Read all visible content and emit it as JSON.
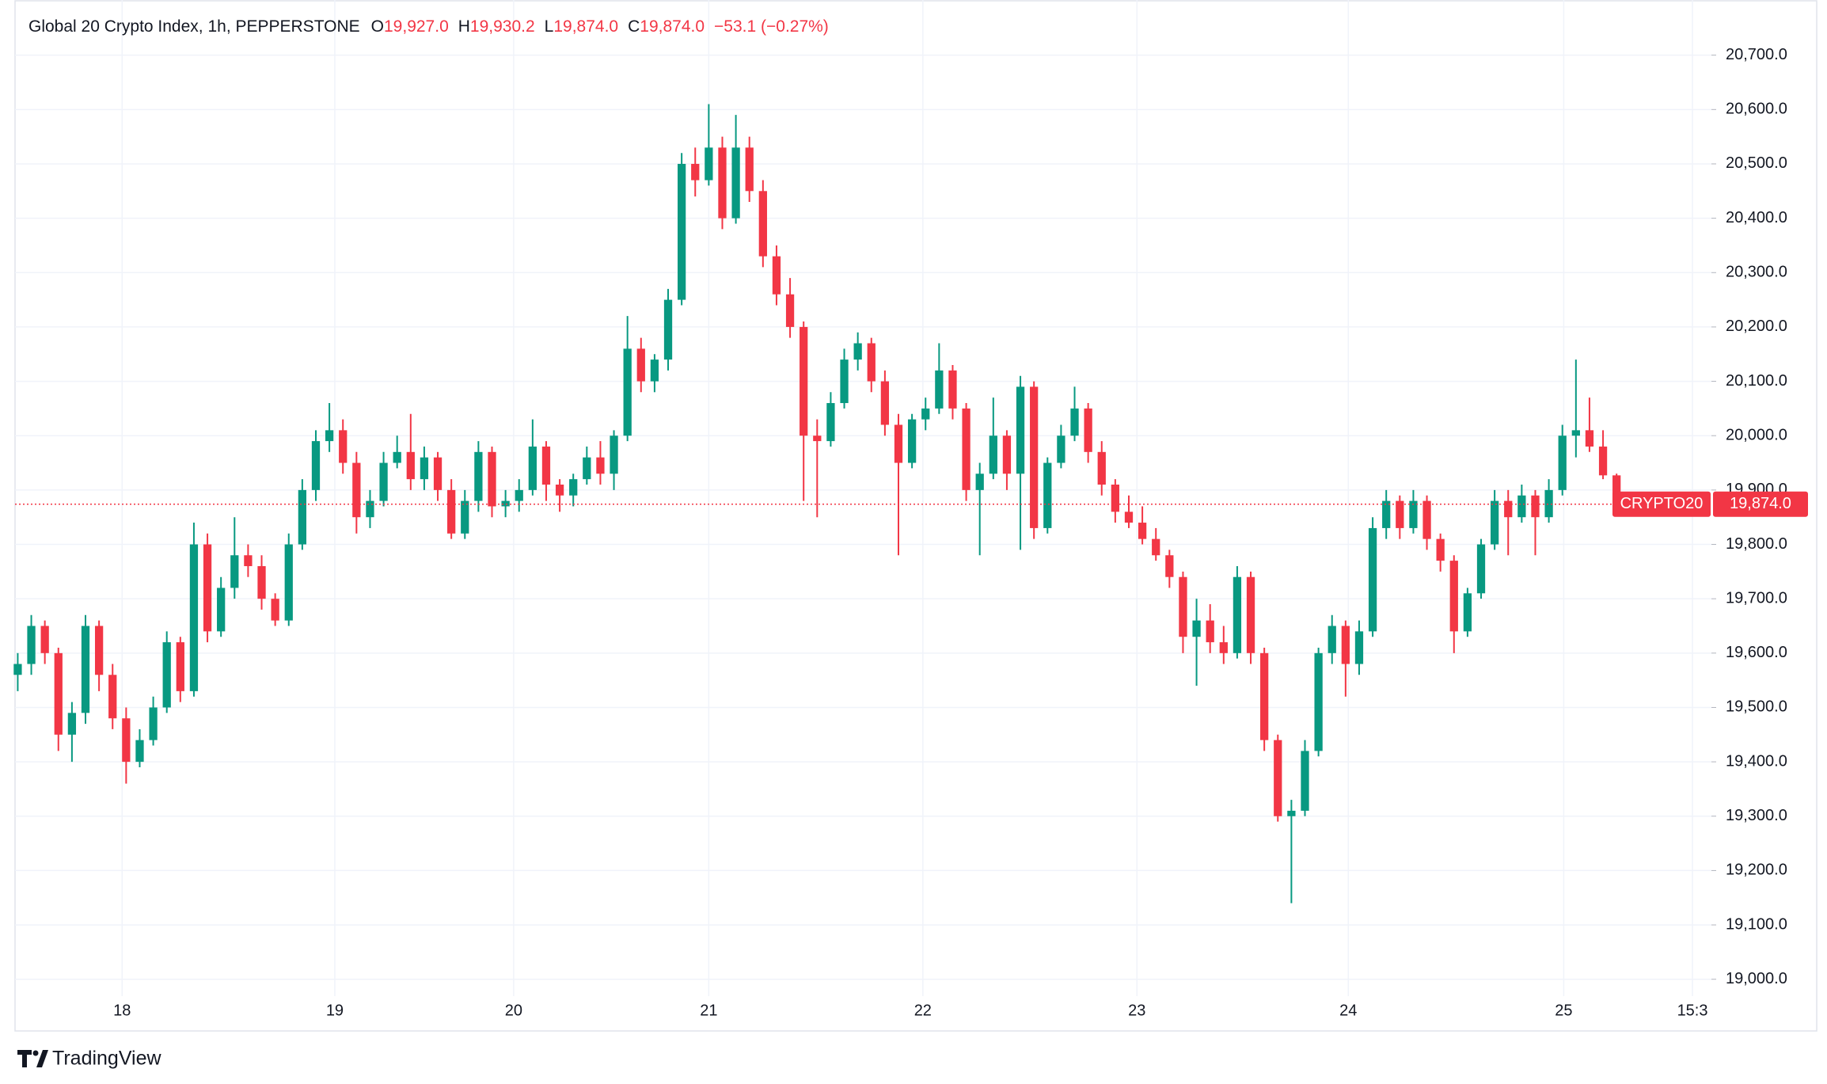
{
  "chart_data": {
    "type": "candlestick",
    "title": "Global 20 Crypto Index, 1h, PEPPERSTONE",
    "ohlc_legend": [
      {
        "key": "O",
        "value": "19,927.0"
      },
      {
        "key": "H",
        "value": "19,930.2"
      },
      {
        "key": "L",
        "value": "19,874.0"
      },
      {
        "key": "C",
        "value": "19,874.0"
      }
    ],
    "change": "−53.1 (−0.27%)",
    "up_color": "#089981",
    "down_color": "#f23645",
    "grid": true,
    "x": [
      1,
      2,
      3,
      4,
      5,
      6,
      7,
      8,
      9,
      10,
      11,
      12,
      13,
      14,
      15,
      16,
      17,
      18,
      19,
      20,
      21,
      22,
      23,
      24,
      25,
      26,
      27,
      28,
      29,
      30,
      31,
      32,
      33,
      34,
      35,
      36,
      37,
      38,
      39,
      40,
      41,
      42,
      43,
      44,
      45,
      46,
      47,
      48,
      49,
      50,
      51,
      52,
      53,
      54,
      55,
      56,
      57,
      58,
      59,
      60,
      61,
      62,
      63,
      64,
      65,
      66,
      67,
      68,
      69,
      70,
      71,
      72,
      73,
      74,
      75,
      76,
      77,
      78,
      79,
      80,
      81,
      82,
      83,
      84,
      85,
      86,
      87,
      88,
      89,
      90,
      91,
      92,
      93,
      94,
      95,
      96,
      97,
      98,
      99,
      100,
      101,
      102,
      103,
      104,
      105,
      106,
      107,
      108,
      109,
      110,
      111,
      112,
      113,
      114,
      115,
      116,
      117,
      118,
      119
    ],
    "open": [
      19560,
      19580,
      19650,
      19600,
      19450,
      19490,
      19650,
      19560,
      19480,
      19400,
      19440,
      19500,
      19620,
      19530,
      19800,
      19640,
      19720,
      19780,
      19760,
      19700,
      19660,
      19800,
      19900,
      19990,
      20010,
      19950,
      19850,
      19880,
      19950,
      19970,
      19920,
      19960,
      19900,
      19820,
      19880,
      19970,
      19870,
      19880,
      19900,
      19980,
      19910,
      19890,
      19920,
      19960,
      19930,
      20000,
      20160,
      20100,
      20140,
      20250,
      20500,
      20470,
      20530,
      20400,
      20530,
      20450,
      20330,
      20260,
      20200,
      20000,
      19990,
      20060,
      20140,
      20170,
      20100,
      20020,
      19950,
      20030,
      20050,
      20120,
      20050,
      19900,
      19930,
      20000,
      19930,
      20090,
      19830,
      19950,
      20000,
      20050,
      19970,
      19910,
      19860,
      19840,
      19810,
      19780,
      19740,
      19630,
      19660,
      19620,
      19600,
      19740,
      19600,
      19440,
      19300,
      19310,
      19420,
      19600,
      19650,
      19580,
      19640,
      19830,
      19880,
      19830,
      19880,
      19810,
      19770,
      19640,
      19710,
      19800,
      19880,
      19850,
      19890,
      19850,
      19900,
      20000,
      20010,
      19980,
      19927
    ],
    "high": [
      19600,
      19670,
      19660,
      19610,
      19510,
      19670,
      19660,
      19580,
      19500,
      19460,
      19520,
      19640,
      19630,
      19840,
      19820,
      19740,
      19850,
      19800,
      19780,
      19710,
      19820,
      19920,
      20010,
      20060,
      20030,
      19970,
      19900,
      19970,
      20000,
      20040,
      19980,
      19970,
      19920,
      19900,
      19990,
      19980,
      19900,
      19920,
      20030,
      19990,
      19920,
      19930,
      19980,
      19990,
      20010,
      20220,
      20180,
      20150,
      20270,
      20520,
      20530,
      20610,
      20550,
      20590,
      20550,
      20470,
      20350,
      20290,
      20210,
      20030,
      20080,
      20160,
      20190,
      20180,
      20120,
      20040,
      20040,
      20070,
      20170,
      20130,
      20060,
      19950,
      20070,
      20010,
      20110,
      20100,
      19960,
      20020,
      20090,
      20060,
      19990,
      19920,
      19890,
      19870,
      19830,
      19790,
      19750,
      19700,
      19690,
      19650,
      19760,
      19750,
      19610,
      19450,
      19330,
      19440,
      19610,
      19670,
      19660,
      19660,
      19850,
      19900,
      19890,
      19900,
      19890,
      19820,
      19780,
      19720,
      19810,
      19900,
      19900,
      19910,
      19900,
      19920,
      20020,
      20140,
      20070,
      20010,
      19930.2
    ],
    "low": [
      19530,
      19560,
      19580,
      19420,
      19400,
      19470,
      19530,
      19460,
      19360,
      19390,
      19430,
      19490,
      19510,
      19520,
      19620,
      19630,
      19700,
      19740,
      19680,
      19650,
      19650,
      19790,
      19880,
      19970,
      19930,
      19820,
      19830,
      19870,
      19940,
      19900,
      19900,
      19880,
      19810,
      19810,
      19860,
      19850,
      19850,
      19860,
      19890,
      19880,
      19860,
      19870,
      19910,
      19910,
      19900,
      19990,
      20080,
      20080,
      20120,
      20240,
      20440,
      20460,
      20380,
      20390,
      20430,
      20310,
      20240,
      20180,
      19880,
      19850,
      19980,
      20050,
      20120,
      20080,
      20000,
      19780,
      19940,
      20010,
      20040,
      20030,
      19880,
      19780,
      19920,
      19900,
      19790,
      19810,
      19820,
      19940,
      19990,
      19950,
      19890,
      19840,
      19830,
      19800,
      19770,
      19720,
      19600,
      19540,
      19600,
      19580,
      19590,
      19580,
      19420,
      19290,
      19140,
      19300,
      19410,
      19580,
      19520,
      19560,
      19630,
      19810,
      19810,
      19820,
      19790,
      19750,
      19600,
      19630,
      19700,
      19790,
      19780,
      19840,
      19780,
      19840,
      19890,
      19960,
      19970,
      19920,
      19874
    ],
    "close": [
      19580,
      19650,
      19600,
      19450,
      19490,
      19650,
      19560,
      19480,
      19400,
      19440,
      19500,
      19620,
      19530,
      19800,
      19640,
      19720,
      19780,
      19760,
      19700,
      19660,
      19800,
      19900,
      19990,
      20010,
      19950,
      19850,
      19880,
      19950,
      19970,
      19920,
      19960,
      19900,
      19820,
      19880,
      19970,
      19870,
      19880,
      19900,
      19980,
      19910,
      19890,
      19920,
      19960,
      19930,
      20000,
      20160,
      20100,
      20140,
      20250,
      20500,
      20470,
      20530,
      20400,
      20530,
      20450,
      20330,
      20260,
      20200,
      20000,
      19990,
      20060,
      20140,
      20170,
      20100,
      20020,
      19950,
      20030,
      20050,
      20120,
      20050,
      19900,
      19930,
      20000,
      19930,
      20090,
      19830,
      19950,
      20000,
      20050,
      19970,
      19910,
      19860,
      19840,
      19810,
      19780,
      19740,
      19630,
      19660,
      19620,
      19600,
      19740,
      19600,
      19440,
      19300,
      19310,
      19420,
      19600,
      19650,
      19580,
      19640,
      19830,
      19880,
      19830,
      19880,
      19810,
      19770,
      19640,
      19710,
      19800,
      19880,
      19850,
      19890,
      19850,
      19900,
      20000,
      20010,
      19980,
      19927,
      19874
    ],
    "xlim": [
      0.8,
      126
    ],
    "xticks": [
      {
        "value": 8.7,
        "label": "18"
      },
      {
        "value": 24.4,
        "label": "19"
      },
      {
        "value": 37.6,
        "label": "20"
      },
      {
        "value": 52.0,
        "label": "21"
      },
      {
        "value": 67.8,
        "label": "22"
      },
      {
        "value": 83.6,
        "label": "23"
      },
      {
        "value": 99.2,
        "label": "24"
      },
      {
        "value": 115.1,
        "label": "25"
      },
      {
        "value": 124.6,
        "label": "15:3"
      }
    ],
    "ylim": [
      18969,
      20784
    ],
    "yticks": [
      {
        "value": 19000,
        "label": "19,000.0"
      },
      {
        "value": 19100,
        "label": "19,100.0"
      },
      {
        "value": 19200,
        "label": "19,200.0"
      },
      {
        "value": 19300,
        "label": "19,300.0"
      },
      {
        "value": 19400,
        "label": "19,400.0"
      },
      {
        "value": 19500,
        "label": "19,500.0"
      },
      {
        "value": 19600,
        "label": "19,600.0"
      },
      {
        "value": 19700,
        "label": "19,700.0"
      },
      {
        "value": 19800,
        "label": "19,800.0"
      },
      {
        "value": 19900,
        "label": "19,900.0"
      },
      {
        "value": 20000,
        "label": "20,000.0"
      },
      {
        "value": 20100,
        "label": "20,100.0"
      },
      {
        "value": 20200,
        "label": "20,200.0"
      },
      {
        "value": 20300,
        "label": "20,300.0"
      },
      {
        "value": 20400,
        "label": "20,400.0"
      },
      {
        "value": 20500,
        "label": "20,500.0"
      },
      {
        "value": 20600,
        "label": "20,600.0"
      },
      {
        "value": 20700,
        "label": "20,700.0"
      }
    ],
    "last_price": {
      "value": 19874,
      "label": "19,874.0",
      "name": "CRYPTO20"
    }
  },
  "branding": {
    "name": "TradingView"
  }
}
